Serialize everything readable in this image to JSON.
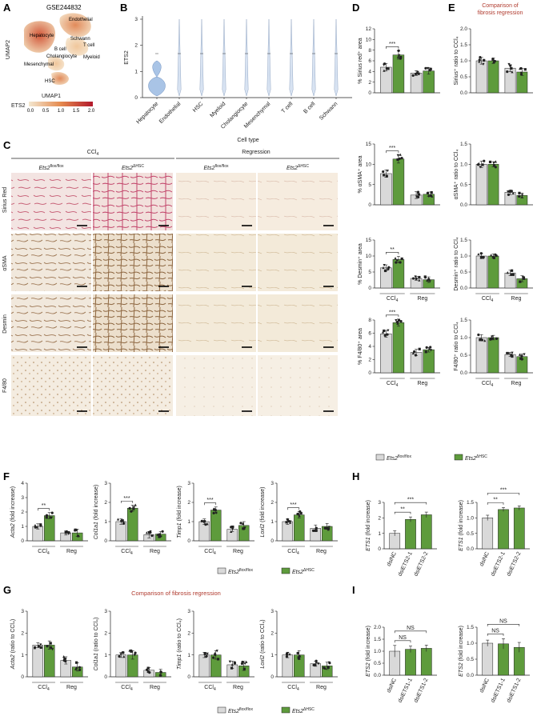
{
  "panels": {
    "A": {
      "letter": "A",
      "dataset": "GSE244832",
      "xlabel": "UMAP1",
      "ylabel": "UMAP2",
      "clusters": [
        "Endothelial",
        "Hepatocyte",
        "Schwann",
        "T cell",
        "B cell",
        "Cholangiocyte",
        "Myeloid",
        "Mesenchymal",
        "HSC"
      ],
      "colorbar_label": "ETS2",
      "colorbar_ticks": [
        "0.0",
        "0.5",
        "1.0",
        "1.5",
        "2.0"
      ]
    },
    "B": {
      "letter": "B",
      "ylabel": "ETS2",
      "xlabel": "Cell type",
      "yticks": [
        "0",
        "1",
        "2",
        "3"
      ],
      "categories": [
        "Hepatocyte",
        "Endothelial",
        "HSC",
        "Myeloid",
        "Cholangiocyte",
        "Mesenchymal",
        "T cell",
        "B cell",
        "Schwann"
      ]
    },
    "C": {
      "letter": "C",
      "group_ccl4": "CCl",
      "group_ccl4_sub": "4",
      "group_reg": "Regression",
      "genotype_fl": "Ets2",
      "genotype_fl_sup": "flox/flox",
      "genotype_ko": "Ets2",
      "genotype_ko_sup": "ΔHSC",
      "rows": [
        "Sirius Red",
        "αSMA",
        "Desmin",
        "F4/80"
      ]
    },
    "D": {
      "letter": "D",
      "ylabels": [
        "% Sirius red⁺ area",
        "% αSMA⁺ area",
        "% Desmin⁺ area",
        "% F4/80⁺ area"
      ],
      "sig": [
        "***",
        "***",
        "**",
        "***"
      ],
      "yticks": [
        [
          "0",
          "2",
          "4",
          "6",
          "8",
          "10",
          "12"
        ],
        [
          "0",
          "5",
          "10",
          "15"
        ],
        [
          "0",
          "5",
          "10",
          "15"
        ],
        [
          "0",
          "2",
          "4",
          "6",
          "8"
        ]
      ],
      "group_ccl4": "CCl",
      "group_ccl4_sub": "4",
      "group_reg": "Reg"
    },
    "E": {
      "letter": "E",
      "title_line1": "Comparison of",
      "title_line2": "fibrosis regression",
      "ylabels": [
        "Sirius⁺ ratio to CCl₄",
        "αSMA⁺ ratio to CCl₄",
        "Desmin⁺ ratio to CCl₄",
        "F4/80⁺ ratio to CCl₄"
      ],
      "yticks": [
        "0.0",
        "0.5",
        "1.0",
        "1.5",
        "2.0"
      ],
      "group_ccl4": "CCl",
      "group_ccl4_sub": "4",
      "group_reg": "Reg"
    },
    "DE_legend": {
      "fl_label": "Ets2",
      "fl_sup": "flox/flox",
      "ko_label": "Ets2",
      "ko_sup": "ΔHSC"
    },
    "F": {
      "letter": "F",
      "genes": [
        "Acta2",
        "Col1a1",
        "Timp1",
        "Loxl2"
      ],
      "ylabel_suffix": " (fold increase)",
      "sig": [
        "**",
        "***",
        "***",
        "***"
      ],
      "yticks": [
        [
          "0",
          "1",
          "2",
          "3",
          "4"
        ],
        [
          "0",
          "1",
          "2",
          "3"
        ],
        [
          "0",
          "1",
          "2",
          "3"
        ],
        [
          "0",
          "1",
          "2",
          "3"
        ]
      ],
      "group_ccl4": "CCl",
      "group_ccl4_sub": "4",
      "group_reg": "Reg"
    },
    "G": {
      "letter": "G",
      "title": "Comparison of fibrosis regression",
      "genes": [
        "Acta2",
        "Col1a1",
        "Timp1",
        "Loxl2"
      ],
      "ylabel_suffix": " (ratio to CCl₄)",
      "yticks": [
        "0",
        "1",
        "2",
        "3"
      ],
      "group_ccl4": "CCl",
      "group_ccl4_sub": "4",
      "group_reg": "Reg"
    },
    "FG_legend": {
      "fl_label": "Ets2",
      "fl_sup": "flox/flox",
      "ko_label": "Ets2",
      "ko_sup": "ΔHSC"
    },
    "H": {
      "letter": "H",
      "ylabel": "ETS1 (fold increase)",
      "categories": [
        "dsiNC",
        "dsiETS2-1",
        "dsiETS2-2"
      ],
      "left_yticks": [
        "0",
        "1",
        "2",
        "3"
      ],
      "right_yticks": [
        "0.0",
        "0.5",
        "1.0",
        "1.5"
      ],
      "sig_left": [
        "**",
        "***"
      ],
      "sig_right": [
        "**",
        "***"
      ]
    },
    "I": {
      "letter": "I",
      "ylabel": "ETS2 (fold increase)",
      "categories": [
        "dsiNC",
        "dsiETS1-1",
        "dsiETS1-2"
      ],
      "left_yticks": [
        "0.0",
        "0.5",
        "1.0",
        "1.5",
        "2.0"
      ],
      "right_yticks": [
        "0.0",
        "0.5",
        "1.0",
        "1.5"
      ],
      "sig": [
        "NS",
        "NS"
      ]
    }
  },
  "colors": {
    "flox": "#d9d9d9",
    "ko": "#5e9b3c",
    "accent_red": "#b03a2e",
    "umap_low": "#f3e7d0",
    "umap_high": "#b2182b"
  },
  "chart_data": [
    {
      "type": "bar",
      "panel": "D",
      "categories": [
        "CCl4",
        "Reg"
      ],
      "ylabel": "% Sirius red⁺ area",
      "ylim": [
        0,
        12
      ],
      "series": [
        {
          "name": "Ets2 flox/flox",
          "values": [
            4.8,
            3.7
          ]
        },
        {
          "name": "Ets2 ΔHSC",
          "values": [
            7.1,
            4.1
          ]
        }
      ]
    },
    {
      "type": "bar",
      "panel": "D",
      "categories": [
        "CCl4",
        "Reg"
      ],
      "ylabel": "% αSMA⁺ area",
      "ylim": [
        0,
        15
      ],
      "series": [
        {
          "name": "Ets2 flox/flox",
          "values": [
            7.7,
            2.4
          ]
        },
        {
          "name": "Ets2 ΔHSC",
          "values": [
            11.3,
            2.6
          ]
        }
      ]
    },
    {
      "type": "bar",
      "panel": "D",
      "categories": [
        "CCl4",
        "Reg"
      ],
      "ylabel": "% Desmin⁺ area",
      "ylim": [
        0,
        15
      ],
      "series": [
        {
          "name": "Ets2 flox/flox",
          "values": [
            6.3,
            3.0
          ]
        },
        {
          "name": "Ets2 ΔHSC",
          "values": [
            8.9,
            2.6
          ]
        }
      ]
    },
    {
      "type": "bar",
      "panel": "D",
      "categories": [
        "CCl4",
        "Reg"
      ],
      "ylabel": "% F4/80⁺ area",
      "ylim": [
        0,
        8
      ],
      "series": [
        {
          "name": "Ets2 flox/flox",
          "values": [
            5.9,
            3.1
          ]
        },
        {
          "name": "Ets2 ΔHSC",
          "values": [
            7.6,
            3.5
          ]
        }
      ]
    },
    {
      "type": "bar",
      "panel": "E",
      "categories": [
        "CCl4",
        "Reg"
      ],
      "ylabel": "Sirius⁺ ratio to CCl₄",
      "ylim": [
        0,
        2
      ],
      "series": [
        {
          "name": "Ets2 flox/flox",
          "values": [
            1.0,
            0.77
          ]
        },
        {
          "name": "Ets2 ΔHSC",
          "values": [
            1.0,
            0.65
          ]
        }
      ]
    },
    {
      "type": "bar",
      "panel": "E",
      "categories": [
        "CCl4",
        "Reg"
      ],
      "ylabel": "αSMA⁺ ratio to CCl₄",
      "ylim": [
        0,
        1.5
      ],
      "series": [
        {
          "name": "Ets2 flox/flox",
          "values": [
            1.0,
            0.31
          ]
        },
        {
          "name": "Ets2 ΔHSC",
          "values": [
            1.0,
            0.23
          ]
        }
      ]
    },
    {
      "type": "bar",
      "panel": "E",
      "categories": [
        "CCl4",
        "Reg"
      ],
      "ylabel": "Desmin⁺ ratio to CCl₄",
      "ylim": [
        0,
        1.5
      ],
      "series": [
        {
          "name": "Ets2 flox/flox",
          "values": [
            1.0,
            0.47
          ]
        },
        {
          "name": "Ets2 ΔHSC",
          "values": [
            1.0,
            0.29
          ]
        }
      ]
    },
    {
      "type": "bar",
      "panel": "E",
      "categories": [
        "CCl4",
        "Reg"
      ],
      "ylabel": "F4/80⁺ ratio to CCl₄",
      "ylim": [
        0,
        1.5
      ],
      "series": [
        {
          "name": "Ets2 flox/flox",
          "values": [
            1.0,
            0.52
          ]
        },
        {
          "name": "Ets2 ΔHSC",
          "values": [
            1.0,
            0.46
          ]
        }
      ]
    },
    {
      "type": "bar",
      "panel": "F",
      "categories": [
        "CCl4",
        "Reg"
      ],
      "ylabel": "Acta2 (fold increase)",
      "ylim": [
        0,
        4
      ],
      "series": [
        {
          "name": "Ets2 flox/flox",
          "values": [
            1.0,
            0.55
          ]
        },
        {
          "name": "Ets2 ΔHSC",
          "values": [
            1.75,
            0.55
          ]
        }
      ]
    },
    {
      "type": "bar",
      "panel": "F",
      "categories": [
        "CCl4",
        "Reg"
      ],
      "ylabel": "Col1a1 (fold increase)",
      "ylim": [
        0,
        3
      ],
      "series": [
        {
          "name": "Ets2 flox/flox",
          "values": [
            1.0,
            0.32
          ]
        },
        {
          "name": "Ets2 ΔHSC",
          "values": [
            1.7,
            0.35
          ]
        }
      ]
    },
    {
      "type": "bar",
      "panel": "F",
      "categories": [
        "CCl4",
        "Reg"
      ],
      "ylabel": "Timp1 (fold increase)",
      "ylim": [
        0,
        3
      ],
      "series": [
        {
          "name": "Ets2 flox/flox",
          "values": [
            1.0,
            0.6
          ]
        },
        {
          "name": "Ets2 ΔHSC",
          "values": [
            1.6,
            0.8
          ]
        }
      ]
    },
    {
      "type": "bar",
      "panel": "F",
      "categories": [
        "CCl4",
        "Reg"
      ],
      "ylabel": "Loxl2 (fold increase)",
      "ylim": [
        0,
        3
      ],
      "series": [
        {
          "name": "Ets2 flox/flox",
          "values": [
            1.0,
            0.65
          ]
        },
        {
          "name": "Ets2 ΔHSC",
          "values": [
            1.35,
            0.75
          ]
        }
      ]
    },
    {
      "type": "bar",
      "panel": "G",
      "categories": [
        "CCl4",
        "Reg"
      ],
      "ylabel": "Acta2 (ratio to CCl₄)",
      "ylim": [
        0,
        3
      ],
      "series": [
        {
          "name": "Ets2 flox/flox",
          "values": [
            1.45,
            0.75
          ]
        },
        {
          "name": "Ets2 ΔHSC",
          "values": [
            1.45,
            0.45
          ]
        }
      ]
    },
    {
      "type": "bar",
      "panel": "G",
      "categories": [
        "CCl4",
        "Reg"
      ],
      "ylabel": "Col1a1 (ratio to CCl₄)",
      "ylim": [
        0,
        3
      ],
      "series": [
        {
          "name": "Ets2 flox/flox",
          "values": [
            1.0,
            0.3
          ]
        },
        {
          "name": "Ets2 ΔHSC",
          "values": [
            1.0,
            0.2
          ]
        }
      ]
    },
    {
      "type": "bar",
      "panel": "G",
      "categories": [
        "CCl4",
        "Reg"
      ],
      "ylabel": "Timp1 (ratio to CCl₄)",
      "ylim": [
        0,
        3
      ],
      "series": [
        {
          "name": "Ets2 flox/flox",
          "values": [
            1.0,
            0.55
          ]
        },
        {
          "name": "Ets2 ΔHSC",
          "values": [
            1.0,
            0.5
          ]
        }
      ]
    },
    {
      "type": "bar",
      "panel": "G",
      "categories": [
        "CCl4",
        "Reg"
      ],
      "ylabel": "Loxl2 (ratio to CCl₄)",
      "ylim": [
        0,
        3
      ],
      "series": [
        {
          "name": "Ets2 flox/flox",
          "values": [
            1.0,
            0.6
          ]
        },
        {
          "name": "Ets2 ΔHSC",
          "values": [
            1.0,
            0.5
          ]
        }
      ]
    },
    {
      "type": "bar",
      "panel": "H",
      "categories": [
        "dsiNC",
        "dsiETS2-1",
        "dsiETS2-2"
      ],
      "ylabel": "ETS1 (fold increase)",
      "ylim": [
        0,
        3
      ],
      "series": [
        {
          "values": [
            1.0,
            1.9,
            2.2
          ]
        }
      ]
    },
    {
      "type": "bar",
      "panel": "H",
      "categories": [
        "dsiNC",
        "dsiETS2-1",
        "dsiETS2-2"
      ],
      "ylabel": "ETS1 (fold increase)",
      "ylim": [
        0,
        1.5
      ],
      "series": [
        {
          "values": [
            1.0,
            1.27,
            1.32
          ]
        }
      ]
    },
    {
      "type": "bar",
      "panel": "I",
      "categories": [
        "dsiNC",
        "dsiETS1-1",
        "dsiETS1-2"
      ],
      "ylabel": "ETS2 (fold increase)",
      "ylim": [
        0,
        2
      ],
      "series": [
        {
          "values": [
            1.0,
            1.08,
            1.12
          ]
        }
      ]
    },
    {
      "type": "bar",
      "panel": "I",
      "categories": [
        "dsiNC",
        "dsiETS1-1",
        "dsiETS1-2"
      ],
      "ylabel": "ETS2 (fold increase)",
      "ylim": [
        0,
        1.5
      ],
      "series": [
        {
          "values": [
            1.0,
            0.98,
            0.87
          ]
        }
      ]
    }
  ]
}
